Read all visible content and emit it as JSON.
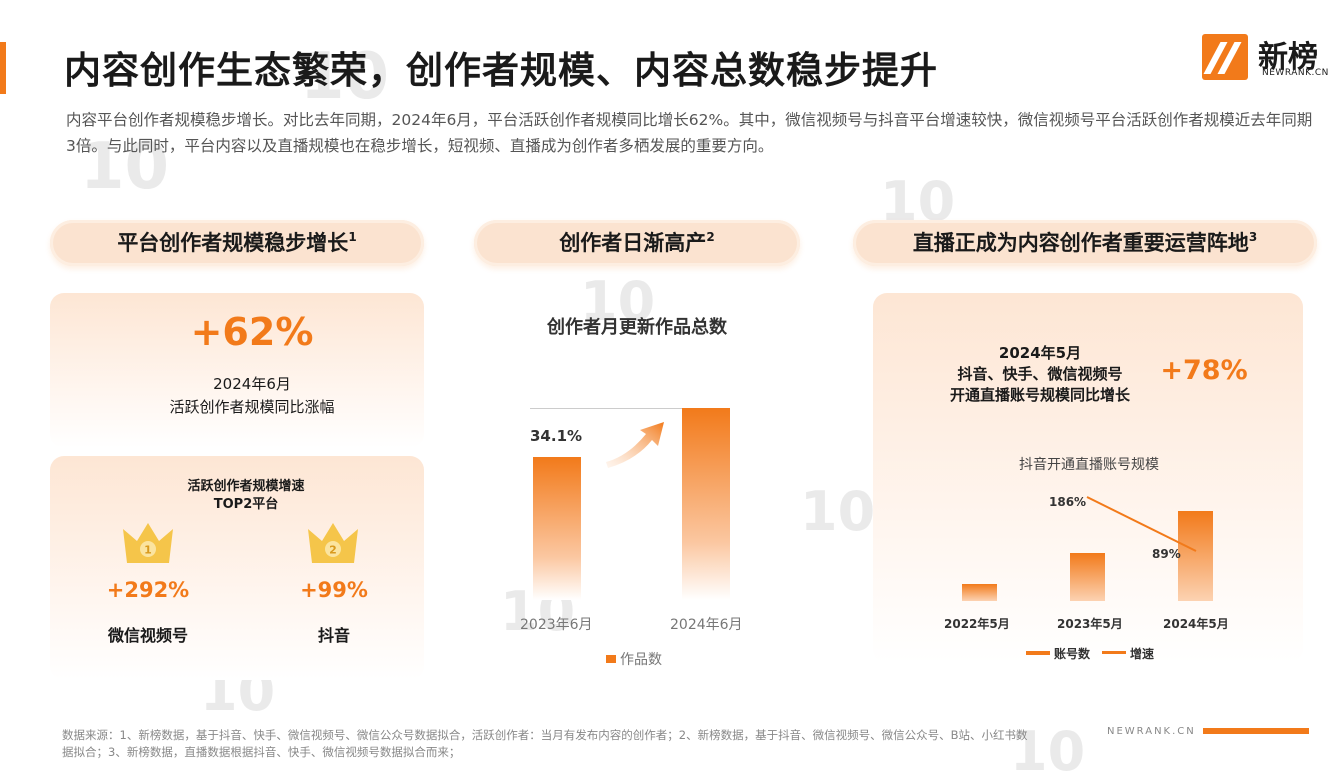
{
  "title": "内容创作生态繁荣，创作者规模、内容总数稳步提升",
  "logo": {
    "name": "新榜",
    "sub": "NEWRANK.CN"
  },
  "intro": "内容平台创作者规模稳步增长。对比去年同期，2024年6月，平台活跃创作者规模同比增长62%。其中，微信视频号与抖音平台增速较快，微信视频号平台活跃创作者规模近去年同期3倍。与此同时，平台内容以及直播规模也在稳步增长，短视频、直播成为创作者多栖发展的重要方向。",
  "sections": [
    {
      "title": "平台创作者规模稳步增长",
      "sup": "1"
    },
    {
      "title": "创作者日渐高产",
      "sup": "2"
    },
    {
      "title": "直播正成为内容创作者重要运营阵地",
      "sup": "3"
    }
  ],
  "panel1": {
    "big_value": "+62%",
    "caption_line1": "2024年6月",
    "caption_line2": "活跃创作者规模同比涨幅",
    "top2_title_line1": "活跃创作者规模增速",
    "top2_title_line2": "TOP2平台",
    "platforms": [
      {
        "rank": "1",
        "growth": "+292%",
        "name": "微信视频号"
      },
      {
        "rank": "2",
        "growth": "+99%",
        "name": "抖音"
      }
    ],
    "colors": {
      "accent": "#f27a1a",
      "crown": "#f5c54a"
    }
  },
  "chart_data": [
    {
      "type": "bar",
      "title": "创作者月更新作品总数",
      "categories": [
        "2023年6月",
        "2024年6月"
      ],
      "series": [
        {
          "name": "作品数",
          "values": [
            100,
            134.1
          ]
        }
      ],
      "annotation": "34.1%"
    },
    {
      "type": "bar",
      "title": "抖音开通直播账号规模",
      "categories": [
        "2022年5月",
        "2023年5月",
        "2024年5月"
      ],
      "series": [
        {
          "name": "账号数",
          "values": [
            1,
            2.86,
            5.41
          ]
        },
        {
          "name": "增速",
          "type": "line",
          "values": [
            null,
            186,
            89
          ],
          "labels": [
            "",
            "186%",
            "89%"
          ]
        }
      ]
    }
  ],
  "panel3": {
    "date": "2024年5月",
    "platforms": "抖音、快手、微信视频号",
    "caption": "开通直播账号规模同比增长",
    "big_value": "+78%"
  },
  "footer": {
    "note": "数据来源：1、新榜数据，基于抖音、快手、微信视频号、微信公众号数据拟合，活跃创作者：当月有发布内容的创作者；2、新榜数据，基于抖音、微信视频号、微信公众号、B站、小红书数据拟合；3、新榜数据，直播数据根据抖音、快手、微信视频号数据拟合而来；",
    "url": "NEWRANK.CN"
  }
}
